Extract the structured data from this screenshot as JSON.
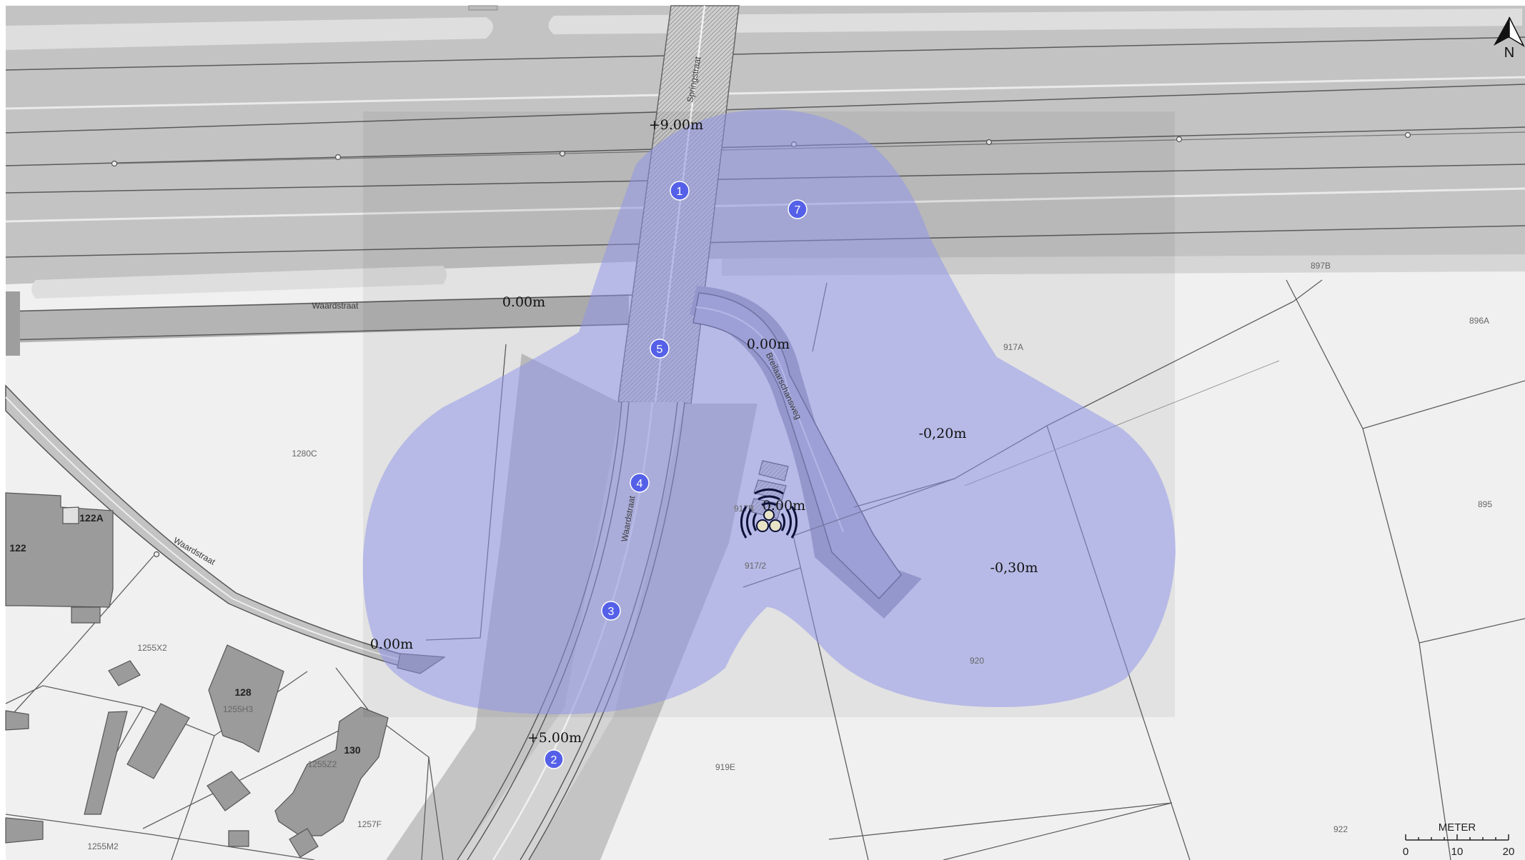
{
  "map": {
    "parcels": [
      {
        "id": "p-897B",
        "label": "897B",
        "pos": [
          1848,
          376
        ]
      },
      {
        "id": "p-896A",
        "label": "896A",
        "pos": [
          2070,
          453
        ]
      },
      {
        "id": "p-917A",
        "label": "917A",
        "pos": [
          1418,
          490
        ]
      },
      {
        "id": "p-895",
        "label": "895",
        "pos": [
          2078,
          710
        ]
      },
      {
        "id": "p-1280C",
        "label": "1280C",
        "pos": [
          426,
          639
        ]
      },
      {
        "id": "p-917B",
        "label": "917B",
        "pos": [
          1041,
          716
        ]
      },
      {
        "id": "p-917-2",
        "label": "917/2",
        "pos": [
          1057,
          796
        ]
      },
      {
        "id": "p-920",
        "label": "920",
        "pos": [
          1367,
          929
        ]
      },
      {
        "id": "p-1255X2",
        "label": "1255X2",
        "pos": [
          213,
          911
        ]
      },
      {
        "id": "p-1255H3",
        "label": "1255H3",
        "pos": [
          333,
          997
        ]
      },
      {
        "id": "p-1255Z2",
        "label": "1255Z2",
        "pos": [
          451,
          1074
        ]
      },
      {
        "id": "p-919E",
        "label": "919E",
        "pos": [
          1015,
          1078
        ]
      },
      {
        "id": "p-1257F",
        "label": "1257F",
        "pos": [
          517,
          1158
        ]
      },
      {
        "id": "p-1255M2",
        "label": "1255M2",
        "pos": [
          144,
          1189
        ]
      },
      {
        "id": "p-922",
        "label": "922",
        "pos": [
          1876,
          1165
        ]
      }
    ],
    "buildings": [
      {
        "id": "b-122A",
        "label": "122A",
        "pos": [
          128,
          730
        ]
      },
      {
        "id": "b-122",
        "label": "122",
        "pos": [
          25,
          772
        ]
      },
      {
        "id": "b-128",
        "label": "128",
        "pos": [
          340,
          974
        ]
      },
      {
        "id": "b-130",
        "label": "130",
        "pos": [
          493,
          1055
        ]
      }
    ],
    "streets": [
      {
        "id": "springstraat",
        "label": "Springstraat",
        "pos": [
          975,
          112
        ],
        "angle": -80
      },
      {
        "id": "waardstraat-north",
        "label": "Waardstraat",
        "pos": [
          469,
          432
        ],
        "angle": 0
      },
      {
        "id": "waardstraat-center",
        "label": "Waardstraat",
        "pos": [
          883,
          727
        ],
        "angle": -80
      },
      {
        "id": "waardstraat-west",
        "label": "Waardstraat",
        "pos": [
          270,
          775
        ],
        "angle": 30
      },
      {
        "id": "breilaarschansweg",
        "label": "Breilaarschansweg",
        "pos": [
          1093,
          542
        ],
        "angle": 65
      }
    ],
    "elevations": [
      {
        "id": "elev-north-bridge",
        "value": "+9.00m",
        "pos": [
          946,
          181
        ]
      },
      {
        "id": "elev-waardstraat",
        "value": "0.00m",
        "pos": [
          733,
          429
        ]
      },
      {
        "id": "elev-junction",
        "value": "0.00m",
        "pos": [
          1075,
          488
        ]
      },
      {
        "id": "elev-east",
        "value": "-0,20m",
        "pos": [
          1319,
          613
        ]
      },
      {
        "id": "elev-source",
        "value": "0.00m",
        "pos": [
          1097,
          714
        ]
      },
      {
        "id": "elev-southeast",
        "value": "-0,30m",
        "pos": [
          1419,
          801
        ]
      },
      {
        "id": "elev-west",
        "value": "0.00m",
        "pos": [
          548,
          908
        ]
      },
      {
        "id": "elev-south",
        "value": "+5.00m",
        "pos": [
          776,
          1039
        ]
      }
    ],
    "markers": [
      {
        "id": "marker-1",
        "label": "1",
        "pos": [
          951,
          267
        ]
      },
      {
        "id": "marker-7",
        "label": "7",
        "pos": [
          1116,
          293
        ]
      },
      {
        "id": "marker-5",
        "label": "5",
        "pos": [
          923,
          488
        ]
      },
      {
        "id": "marker-4",
        "label": "4",
        "pos": [
          895,
          676
        ]
      },
      {
        "id": "marker-3",
        "label": "3",
        "pos": [
          855,
          855
        ]
      },
      {
        "id": "marker-2",
        "label": "2",
        "pos": [
          775,
          1063
        ]
      }
    ],
    "north_arrow": {
      "label": "N"
    },
    "scale_bar": {
      "title": "METER",
      "ticks": [
        "0",
        "10",
        "20"
      ]
    },
    "colors": {
      "coverage": "#8f95ea",
      "marker": "#5560e8",
      "road": "#bdbdbd",
      "building": "#9a9a9a",
      "background": "#f0f0f0"
    }
  }
}
